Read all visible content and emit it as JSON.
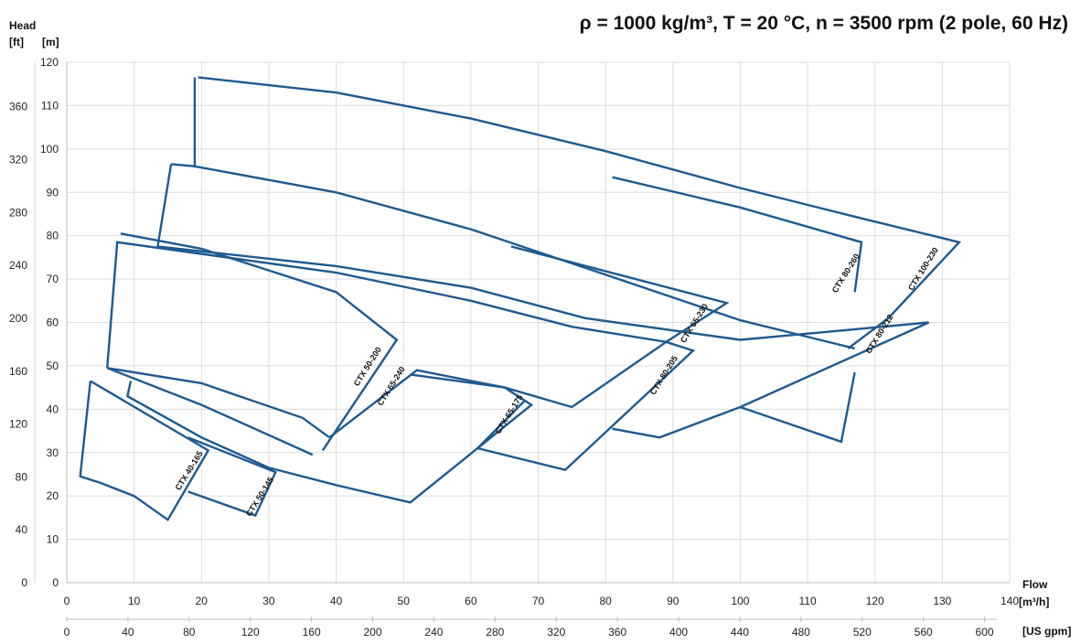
{
  "chart_data": {
    "type": "line",
    "title": "ρ = 1000 kg/m³, T = 20 °C, n = 3500 rpm (2 pole, 60 Hz)",
    "y_axis": {
      "title": "Head",
      "unit_left": "[ft]",
      "unit_right": "[m]",
      "m_ticks": [
        "0",
        "10",
        "20",
        "30",
        "40",
        "50",
        "60",
        "70",
        "80",
        "90",
        "100",
        "110",
        "120"
      ],
      "m_range": [
        0,
        120
      ],
      "ft_ticks": [
        "0",
        "40",
        "80",
        "120",
        "160",
        "200",
        "240",
        "280",
        "320",
        "360"
      ]
    },
    "x_axis": {
      "title": "Flow",
      "unit_primary": "[m³/h]",
      "unit_secondary": "[US gpm]",
      "m3h_ticks": [
        "0",
        "10",
        "20",
        "30",
        "40",
        "50",
        "60",
        "70",
        "80",
        "90",
        "100",
        "110",
        "120",
        "130",
        "140"
      ],
      "m3h_range": [
        0,
        140
      ],
      "gpm_ticks": [
        "0",
        "40",
        "80",
        "120",
        "160",
        "200",
        "240",
        "280",
        "320",
        "360",
        "400",
        "440",
        "480",
        "520",
        "560",
        "600"
      ]
    },
    "grid": true,
    "series": [
      {
        "name": "CTX 100-230",
        "label": "CTX 100-230",
        "points": [
          [
            19.5,
            116.5
          ],
          [
            40,
            113
          ],
          [
            60,
            107
          ],
          [
            80,
            99.5
          ],
          [
            100,
            91
          ],
          [
            118,
            84
          ],
          [
            132.5,
            78.5
          ],
          [
            122,
            61
          ],
          [
            116,
            54
          ]
        ]
      },
      {
        "name": "CTX 80-260",
        "label": "CTX 80-260",
        "points": [
          [
            15.5,
            96.5
          ],
          [
            19,
            96
          ],
          [
            40,
            90
          ],
          [
            60,
            81.5
          ],
          [
            80,
            71
          ],
          [
            100,
            60.5
          ],
          [
            117,
            54
          ]
        ]
      },
      {
        "name": "CTX 80-260",
        "label": "CTX 80-260",
        "points": [
          [
            19,
            96
          ],
          [
            19,
            116.5
          ]
        ]
      },
      {
        "name": "CTX 80-260",
        "label": "CTX 80-260",
        "points": [
          [
            13.5,
            77.5
          ],
          [
            15.5,
            96.5
          ]
        ]
      },
      {
        "name": "CTX 80-260",
        "label": "CTX 80-260",
        "points": [
          [
            81,
            93.5
          ],
          [
            100,
            86.5
          ],
          [
            118,
            78.5
          ],
          [
            117,
            67
          ]
        ]
      },
      {
        "name": "CTX 80-212",
        "label": "CTX 80-212",
        "points": [
          [
            13.5,
            77.5
          ],
          [
            40,
            73
          ],
          [
            60,
            68
          ],
          [
            77,
            61
          ],
          [
            100,
            56
          ],
          [
            128,
            60
          ],
          [
            100,
            40.5
          ],
          [
            88,
            33.5
          ],
          [
            81,
            35.5
          ]
        ]
      },
      {
        "name": "CTX 80-212",
        "label": "CTX 80-212",
        "points": [
          [
            100,
            40.5
          ],
          [
            115,
            32.5
          ],
          [
            117,
            48.5
          ]
        ]
      },
      {
        "name": "CTX 65-230",
        "label": "CTX 65-230",
        "points": [
          [
            8,
            80.5
          ],
          [
            20,
            77
          ],
          [
            40,
            67
          ],
          [
            49,
            56
          ],
          [
            38,
            30.5
          ]
        ]
      },
      {
        "name": "CTX 65-230",
        "label": "CTX 65-230",
        "points": [
          [
            66,
            77.5
          ],
          [
            98,
            64.5
          ],
          [
            89,
            55.5
          ],
          [
            75,
            59
          ],
          [
            60,
            65
          ],
          [
            40,
            71.5
          ],
          [
            7.5,
            78.5
          ],
          [
            6,
            49.5
          ]
        ]
      },
      {
        "name": "CTX 80-205",
        "label": "CTX 80-205",
        "points": [
          [
            39,
            33.5
          ],
          [
            52,
            49
          ],
          [
            65,
            45
          ],
          [
            75,
            40.5
          ],
          [
            89,
            55.5
          ],
          [
            93,
            53.5
          ],
          [
            74,
            26
          ],
          [
            61,
            31
          ],
          [
            68,
            42
          ]
        ]
      },
      {
        "name": "CTX 65-240",
        "label": "CTX 65-240",
        "points": [
          [
            6,
            49.5
          ],
          [
            20,
            46
          ],
          [
            35,
            38
          ],
          [
            39,
            33.5
          ]
        ]
      },
      {
        "name": "CTX 50-200",
        "label": "CTX 50-200",
        "points": [
          [
            6,
            49.5
          ],
          [
            20,
            41
          ],
          [
            36.5,
            29.5
          ]
        ]
      },
      {
        "name": "CTX 65-175",
        "label": "CTX 65-175",
        "points": [
          [
            51,
            48
          ],
          [
            65,
            45
          ],
          [
            69,
            41
          ],
          [
            51,
            18.5
          ],
          [
            40,
            22.5
          ],
          [
            30,
            26.5
          ],
          [
            20,
            33.5
          ],
          [
            9,
            43
          ],
          [
            9.5,
            46.5
          ]
        ]
      },
      {
        "name": "CTX 40-165",
        "label": "CTX 40-165",
        "points": [
          [
            3.5,
            46.5
          ],
          [
            21,
            30.5
          ],
          [
            15,
            14.5
          ],
          [
            10,
            20
          ],
          [
            5,
            23
          ],
          [
            2,
            24.5
          ],
          [
            3.5,
            46.5
          ]
        ]
      },
      {
        "name": "CTX 50-145",
        "label": "CTX 50-145",
        "points": [
          [
            18,
            21
          ],
          [
            28,
            15.5
          ],
          [
            31,
            25.5
          ],
          [
            18,
            33.5
          ]
        ]
      }
    ],
    "curve_labels": [
      {
        "text": "CTX 100-230",
        "x": 127.5,
        "y": 72
      },
      {
        "text": "CTX 80-260",
        "x": 116,
        "y": 71
      },
      {
        "text": "CTX 65-230",
        "x": 93.5,
        "y": 59.5
      },
      {
        "text": "CTX 80-212",
        "x": 121,
        "y": 57
      },
      {
        "text": "CTX 80-205",
        "x": 89,
        "y": 47.5
      },
      {
        "text": "CTX 50-200",
        "x": 45,
        "y": 49.5
      },
      {
        "text": "CTX 65-240",
        "x": 48.5,
        "y": 45
      },
      {
        "text": "CTX 65-175",
        "x": 66,
        "y": 38.5
      },
      {
        "text": "CTX 40-165",
        "x": 18.5,
        "y": 25.5
      },
      {
        "text": "CTX 50-145",
        "x": 29,
        "y": 19.5
      }
    ]
  }
}
